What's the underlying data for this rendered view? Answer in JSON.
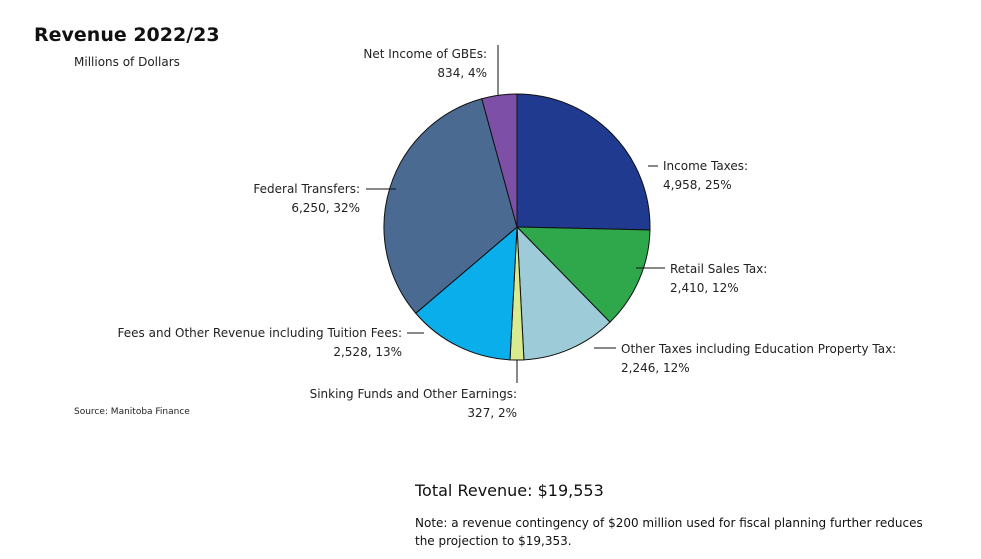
{
  "title": "Revenue 2022/23",
  "subtitle": "Millions of Dollars",
  "source": "Source: Manitoba Finance",
  "total": "Total Revenue: $19,553",
  "note": "Note: a revenue contingency of $200 million used for fiscal planning further reduces the projection to $19,353.",
  "chart_data": {
    "type": "pie",
    "title": "Revenue 2022/23",
    "subtitle": "Millions of Dollars",
    "unit": "Millions of Dollars",
    "slices": [
      {
        "name": "Income Taxes:",
        "value": 4958,
        "percent": 25,
        "value_label": "4,958, 25%",
        "color": "#1f3a8f"
      },
      {
        "name": "Retail Sales Tax:",
        "value": 2410,
        "percent": 12,
        "value_label": "2,410, 12%",
        "color": "#2ea84a"
      },
      {
        "name": "Other Taxes including Education Property Tax:",
        "value": 2246,
        "percent": 12,
        "value_label": "2,246, 12%",
        "color": "#9ecbd8"
      },
      {
        "name": "Sinking Funds and Other Earnings:",
        "value": 327,
        "percent": 2,
        "value_label": "327, 2%",
        "color": "#d9ea8f"
      },
      {
        "name": "Fees and Other Revenue including Tuition Fees:",
        "value": 2528,
        "percent": 13,
        "value_label": "2,528, 13%",
        "color": "#0aaeea"
      },
      {
        "name": "Federal Transfers:",
        "value": 6250,
        "percent": 32,
        "value_label": "6,250, 32%",
        "color": "#4a6a92"
      },
      {
        "name": "Net Income of GBEs:",
        "value": 834,
        "percent": 4,
        "value_label": "834, 4%",
        "color": "#7d4fa6"
      }
    ],
    "start_angle": "12 o'clock",
    "direction": "clockwise",
    "total": 19553
  }
}
